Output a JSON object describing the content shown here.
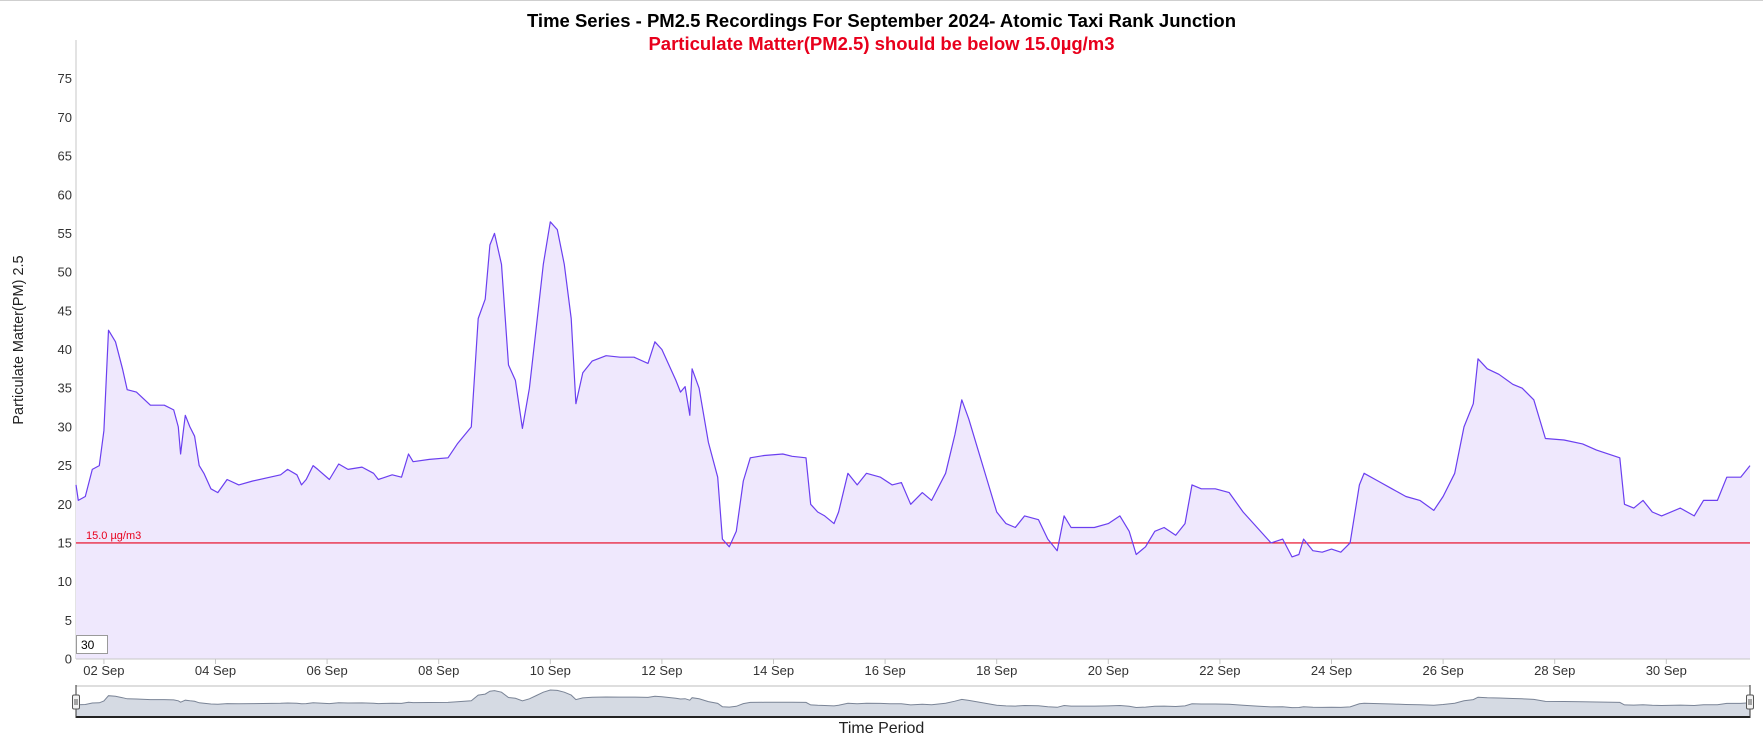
{
  "chart_data": {
    "type": "area",
    "title": "Time Series - PM2.5 Recordings For September 2024- Atomic Taxi Rank Junction",
    "subtitle": "Particulate Matter(PM2.5) should be below 15.0µg/m3",
    "xlabel": "Time Period",
    "ylabel": "Particulate Matter(PM) 2.5",
    "ylim": [
      0,
      80
    ],
    "y_ticks": [
      0,
      5,
      10,
      15,
      20,
      25,
      30,
      35,
      40,
      45,
      50,
      55,
      60,
      65,
      70,
      75
    ],
    "x_ticks": [
      {
        "x": "2024-09-02",
        "label": "02 Sep"
      },
      {
        "x": "2024-09-04",
        "label": "04 Sep"
      },
      {
        "x": "2024-09-06",
        "label": "06 Sep"
      },
      {
        "x": "2024-09-08",
        "label": "08 Sep"
      },
      {
        "x": "2024-09-10",
        "label": "10 Sep"
      },
      {
        "x": "2024-09-12",
        "label": "12 Sep"
      },
      {
        "x": "2024-09-14",
        "label": "14 Sep"
      },
      {
        "x": "2024-09-16",
        "label": "16 Sep"
      },
      {
        "x": "2024-09-18",
        "label": "18 Sep"
      },
      {
        "x": "2024-09-20",
        "label": "20 Sep"
      },
      {
        "x": "2024-09-22",
        "label": "22 Sep"
      },
      {
        "x": "2024-09-24",
        "label": "24 Sep"
      },
      {
        "x": "2024-09-26",
        "label": "26 Sep"
      },
      {
        "x": "2024-09-28",
        "label": "28 Sep"
      },
      {
        "x": "2024-09-30",
        "label": "30 Sep"
      }
    ],
    "xlim": [
      "2024-09-01 12:00",
      "2024-10-01 12:00"
    ],
    "threshold": {
      "value": 15.0,
      "label": "15.0 µg/m3"
    },
    "rolling_period": "30",
    "grid": false,
    "legend": "none",
    "series": [
      {
        "points": [
          [
            "2024-09-01 12:00",
            22.5
          ],
          [
            "2024-09-01 13:00",
            20.5
          ],
          [
            "2024-09-01 16:00",
            21.0
          ],
          [
            "2024-09-01 19:00",
            24.5
          ],
          [
            "2024-09-01 22:00",
            25.0
          ],
          [
            "2024-09-02 00:00",
            29.5
          ],
          [
            "2024-09-02 02:00",
            42.5
          ],
          [
            "2024-09-02 05:00",
            41.0
          ],
          [
            "2024-09-02 08:00",
            37.5
          ],
          [
            "2024-09-02 10:00",
            34.8
          ],
          [
            "2024-09-02 14:00",
            34.5
          ],
          [
            "2024-09-02 20:00",
            32.8
          ],
          [
            "2024-09-03 02:00",
            32.8
          ],
          [
            "2024-09-03 06:00",
            32.2
          ],
          [
            "2024-09-03 08:00",
            30.0
          ],
          [
            "2024-09-03 09:00",
            26.5
          ],
          [
            "2024-09-03 10:00",
            29.0
          ],
          [
            "2024-09-03 11:00",
            31.5
          ],
          [
            "2024-09-03 13:00",
            30.0
          ],
          [
            "2024-09-03 15:00",
            28.8
          ],
          [
            "2024-09-03 17:00",
            25.0
          ],
          [
            "2024-09-03 19:00",
            24.0
          ],
          [
            "2024-09-03 22:00",
            22.0
          ],
          [
            "2024-09-04 01:00",
            21.5
          ],
          [
            "2024-09-04 05:00",
            23.2
          ],
          [
            "2024-09-04 10:00",
            22.5
          ],
          [
            "2024-09-04 16:00",
            23.0
          ],
          [
            "2024-09-05 04:00",
            23.8
          ],
          [
            "2024-09-05 07:00",
            24.5
          ],
          [
            "2024-09-05 11:00",
            23.8
          ],
          [
            "2024-09-05 13:00",
            22.5
          ],
          [
            "2024-09-05 15:00",
            23.2
          ],
          [
            "2024-09-05 18:00",
            25.0
          ],
          [
            "2024-09-05 20:00",
            24.5
          ],
          [
            "2024-09-06 01:00",
            23.2
          ],
          [
            "2024-09-06 05:00",
            25.2
          ],
          [
            "2024-09-06 09:00",
            24.5
          ],
          [
            "2024-09-06 15:00",
            24.8
          ],
          [
            "2024-09-06 20:00",
            24.0
          ],
          [
            "2024-09-06 22:00",
            23.2
          ],
          [
            "2024-09-07 04:00",
            23.8
          ],
          [
            "2024-09-07 08:00",
            23.5
          ],
          [
            "2024-09-07 11:00",
            26.5
          ],
          [
            "2024-09-07 13:00",
            25.5
          ],
          [
            "2024-09-07 20:00",
            25.8
          ],
          [
            "2024-09-08 04:00",
            26.0
          ],
          [
            "2024-09-08 08:00",
            27.8
          ],
          [
            "2024-09-08 14:00",
            30.0
          ],
          [
            "2024-09-08 17:00",
            44.0
          ],
          [
            "2024-09-08 20:00",
            46.5
          ],
          [
            "2024-09-08 22:00",
            53.5
          ],
          [
            "2024-09-09 00:00",
            55.0
          ],
          [
            "2024-09-09 03:00",
            51.0
          ],
          [
            "2024-09-09 06:00",
            38.0
          ],
          [
            "2024-09-09 09:00",
            36.0
          ],
          [
            "2024-09-09 12:00",
            29.8
          ],
          [
            "2024-09-09 15:00",
            35.0
          ],
          [
            "2024-09-09 18:00",
            43.0
          ],
          [
            "2024-09-09 21:00",
            51.0
          ],
          [
            "2024-09-10 00:00",
            56.5
          ],
          [
            "2024-09-10 03:00",
            55.5
          ],
          [
            "2024-09-10 06:00",
            51.0
          ],
          [
            "2024-09-10 09:00",
            44.0
          ],
          [
            "2024-09-10 11:00",
            33.0
          ],
          [
            "2024-09-10 14:00",
            37.0
          ],
          [
            "2024-09-10 18:00",
            38.5
          ],
          [
            "2024-09-11 00:00",
            39.2
          ],
          [
            "2024-09-11 06:00",
            39.0
          ],
          [
            "2024-09-11 12:00",
            39.0
          ],
          [
            "2024-09-11 18:00",
            38.2
          ],
          [
            "2024-09-11 21:00",
            41.0
          ],
          [
            "2024-09-12 00:00",
            40.0
          ],
          [
            "2024-09-12 06:00",
            36.0
          ],
          [
            "2024-09-12 08:00",
            34.5
          ],
          [
            "2024-09-12 10:00",
            35.2
          ],
          [
            "2024-09-12 12:00",
            31.5
          ],
          [
            "2024-09-12 13:00",
            37.5
          ],
          [
            "2024-09-12 16:00",
            35.0
          ],
          [
            "2024-09-12 20:00",
            28.0
          ],
          [
            "2024-09-13 00:00",
            23.5
          ],
          [
            "2024-09-13 02:00",
            15.5
          ],
          [
            "2024-09-13 05:00",
            14.5
          ],
          [
            "2024-09-13 08:00",
            16.5
          ],
          [
            "2024-09-13 11:00",
            23.0
          ],
          [
            "2024-09-13 14:00",
            26.0
          ],
          [
            "2024-09-13 20:00",
            26.3
          ],
          [
            "2024-09-14 04:00",
            26.5
          ],
          [
            "2024-09-14 08:00",
            26.2
          ],
          [
            "2024-09-14 14:00",
            26.0
          ],
          [
            "2024-09-14 16:00",
            20.0
          ],
          [
            "2024-09-14 19:00",
            19.0
          ],
          [
            "2024-09-14 22:00",
            18.5
          ],
          [
            "2024-09-15 02:00",
            17.5
          ],
          [
            "2024-09-15 04:00",
            19.0
          ],
          [
            "2024-09-15 08:00",
            24.0
          ],
          [
            "2024-09-15 12:00",
            22.5
          ],
          [
            "2024-09-15 16:00",
            24.0
          ],
          [
            "2024-09-15 22:00",
            23.5
          ],
          [
            "2024-09-16 03:00",
            22.5
          ],
          [
            "2024-09-16 07:00",
            22.8
          ],
          [
            "2024-09-16 11:00",
            20.0
          ],
          [
            "2024-09-16 16:00",
            21.5
          ],
          [
            "2024-09-16 20:00",
            20.5
          ],
          [
            "2024-09-17 02:00",
            24.0
          ],
          [
            "2024-09-17 06:00",
            29.0
          ],
          [
            "2024-09-17 09:00",
            33.5
          ],
          [
            "2024-09-17 12:00",
            31.0
          ],
          [
            "2024-09-17 16:00",
            27.0
          ],
          [
            "2024-09-17 20:00",
            23.0
          ],
          [
            "2024-09-18 00:00",
            19.0
          ],
          [
            "2024-09-18 04:00",
            17.5
          ],
          [
            "2024-09-18 08:00",
            17.0
          ],
          [
            "2024-09-18 12:00",
            18.5
          ],
          [
            "2024-09-18 18:00",
            18.0
          ],
          [
            "2024-09-18 22:00",
            15.5
          ],
          [
            "2024-09-19 02:00",
            14.0
          ],
          [
            "2024-09-19 05:00",
            18.5
          ],
          [
            "2024-09-19 08:00",
            17.0
          ],
          [
            "2024-09-19 18:00",
            17.0
          ],
          [
            "2024-09-20 00:00",
            17.5
          ],
          [
            "2024-09-20 05:00",
            18.5
          ],
          [
            "2024-09-20 09:00",
            16.5
          ],
          [
            "2024-09-20 12:00",
            13.5
          ],
          [
            "2024-09-20 16:00",
            14.5
          ],
          [
            "2024-09-20 20:00",
            16.5
          ],
          [
            "2024-09-21 00:00",
            17.0
          ],
          [
            "2024-09-21 05:00",
            16.0
          ],
          [
            "2024-09-21 09:00",
            17.5
          ],
          [
            "2024-09-21 12:00",
            22.5
          ],
          [
            "2024-09-21 16:00",
            22.0
          ],
          [
            "2024-09-21 22:00",
            22.0
          ],
          [
            "2024-09-22 04:00",
            21.5
          ],
          [
            "2024-09-22 10:00",
            19.0
          ],
          [
            "2024-09-22 16:00",
            17.0
          ],
          [
            "2024-09-22 22:00",
            15.0
          ],
          [
            "2024-09-23 03:00",
            15.5
          ],
          [
            "2024-09-23 07:00",
            13.2
          ],
          [
            "2024-09-23 10:00",
            13.5
          ],
          [
            "2024-09-23 12:00",
            15.5
          ],
          [
            "2024-09-23 16:00",
            14.0
          ],
          [
            "2024-09-23 20:00",
            13.8
          ],
          [
            "2024-09-24 00:00",
            14.2
          ],
          [
            "2024-09-24 04:00",
            13.8
          ],
          [
            "2024-09-24 08:00",
            15.0
          ],
          [
            "2024-09-24 12:00",
            22.5
          ],
          [
            "2024-09-24 14:00",
            24.0
          ],
          [
            "2024-09-24 20:00",
            23.0
          ],
          [
            "2024-09-25 02:00",
            22.0
          ],
          [
            "2024-09-25 08:00",
            21.0
          ],
          [
            "2024-09-25 14:00",
            20.5
          ],
          [
            "2024-09-25 20:00",
            19.2
          ],
          [
            "2024-09-26 00:00",
            21.0
          ],
          [
            "2024-09-26 05:00",
            24.0
          ],
          [
            "2024-09-26 09:00",
            30.0
          ],
          [
            "2024-09-26 13:00",
            33.0
          ],
          [
            "2024-09-26 15:00",
            38.8
          ],
          [
            "2024-09-26 19:00",
            37.5
          ],
          [
            "2024-09-27 00:00",
            36.8
          ],
          [
            "2024-09-27 06:00",
            35.5
          ],
          [
            "2024-09-27 10:00",
            35.0
          ],
          [
            "2024-09-27 15:00",
            33.5
          ],
          [
            "2024-09-27 20:00",
            28.5
          ],
          [
            "2024-09-28 04:00",
            28.3
          ],
          [
            "2024-09-28 12:00",
            27.8
          ],
          [
            "2024-09-28 18:00",
            27.0
          ],
          [
            "2024-09-29 04:00",
            26.0
          ],
          [
            "2024-09-29 06:00",
            20.0
          ],
          [
            "2024-09-29 10:00",
            19.5
          ],
          [
            "2024-09-29 14:00",
            20.5
          ],
          [
            "2024-09-29 18:00",
            19.0
          ],
          [
            "2024-09-29 22:00",
            18.5
          ],
          [
            "2024-09-30 06:00",
            19.5
          ],
          [
            "2024-09-30 12:00",
            18.5
          ],
          [
            "2024-09-30 16:00",
            20.5
          ],
          [
            "2024-09-30 22:00",
            20.5
          ],
          [
            "2024-10-01 02:00",
            23.5
          ],
          [
            "2024-10-01 08:00",
            23.5
          ],
          [
            "2024-10-01 12:00",
            25.0
          ]
        ]
      }
    ],
    "colors": {
      "line": "#6b3ff0",
      "fill": "#efe8fd",
      "threshold": "#e8001c",
      "navigator_fill": "#d5dae3",
      "navigator_line": "#7a8496"
    }
  }
}
